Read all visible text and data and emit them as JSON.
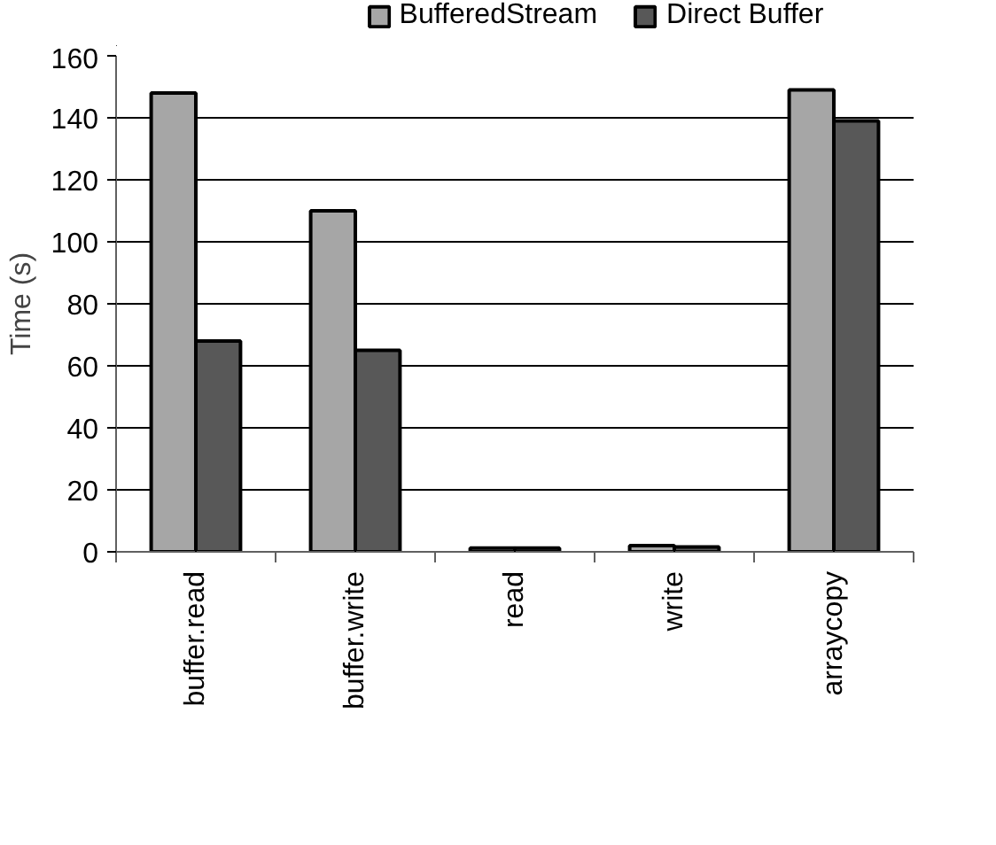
{
  "chart_data": {
    "type": "bar",
    "ylabel": "Time (s)",
    "categories": [
      "buffer.read",
      "buffer.write",
      "read",
      "write",
      "arraycopy"
    ],
    "series": [
      {
        "name": "BufferedStream",
        "color": "#a6a6a6",
        "values": [
          148,
          110,
          1.2,
          2,
          149
        ]
      },
      {
        "name": "Direct Buffer",
        "color": "#585858",
        "values": [
          68,
          65,
          1.2,
          1.6,
          139
        ]
      }
    ],
    "ylim": [
      0,
      160
    ],
    "yticks": [
      0,
      20,
      40,
      60,
      80,
      100,
      120,
      140,
      160
    ],
    "grid": "y",
    "legend": "top right"
  }
}
